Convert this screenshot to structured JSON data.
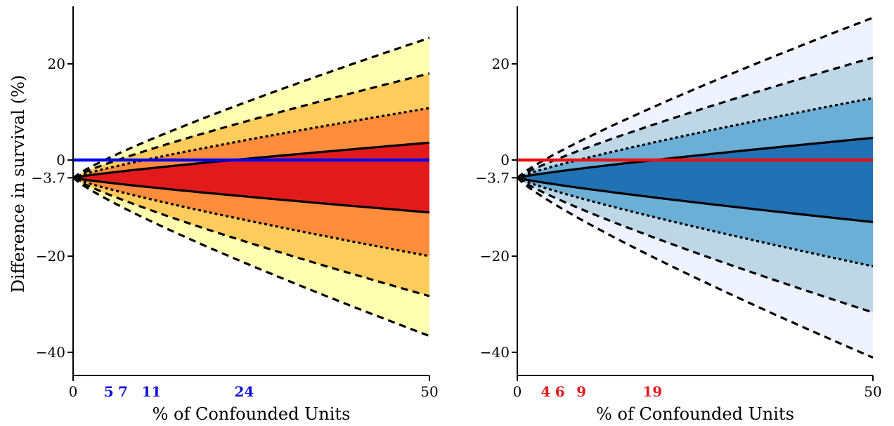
{
  "chart_data": [
    {
      "type": "area",
      "panel": "left",
      "title": "",
      "xlabel": "% of Confounded Units",
      "ylabel": "Difference in survival (%)",
      "xlim": [
        0,
        50
      ],
      "ylim": [
        -45,
        32
      ],
      "x_ticks": [
        0,
        50
      ],
      "y_ticks": [
        20,
        0,
        -3.7,
        -20,
        -40
      ],
      "y_tick_labels": [
        "20",
        "0",
        "−3.7",
        "−20",
        "−40"
      ],
      "origin_value": -3.7,
      "reference_line": {
        "y": 0,
        "color": "#0000ee"
      },
      "highlight_x": [
        5,
        7,
        11,
        24
      ],
      "highlight_color": "#1010dd",
      "band_colors": [
        "#ffffb2",
        "#fecc5c",
        "#fd8d3c",
        "#e31a1c"
      ],
      "end_values": {
        "x": 50,
        "upper": [
          25.4,
          18.0,
          10.8,
          3.6
        ],
        "lower": [
          -10.9,
          -20.0,
          -28.3,
          -36.6
        ]
      },
      "grid": false,
      "legend": "none"
    },
    {
      "type": "area",
      "panel": "right",
      "title": "",
      "xlabel": "% of Confounded Units",
      "ylabel": "",
      "xlim": [
        0,
        50
      ],
      "ylim": [
        -45,
        32
      ],
      "x_ticks": [
        0,
        50
      ],
      "y_ticks": [
        20,
        0,
        -3.7,
        -20,
        -40
      ],
      "y_tick_labels": [
        "20",
        "0",
        "−3.7",
        "−20",
        "−40"
      ],
      "origin_value": -3.7,
      "reference_line": {
        "y": 0,
        "color": "#ee1010"
      },
      "highlight_x": [
        4,
        6,
        9,
        19
      ],
      "highlight_color": "#e31a1c",
      "band_colors": [
        "#eff3ff",
        "#bdd7e7",
        "#6baed6",
        "#2171b5"
      ],
      "end_values": {
        "x": 50,
        "upper": [
          29.6,
          21.3,
          12.9,
          4.6
        ],
        "lower": [
          -12.9,
          -22.1,
          -31.7,
          -41.1
        ]
      },
      "grid": false,
      "legend": "none"
    }
  ]
}
